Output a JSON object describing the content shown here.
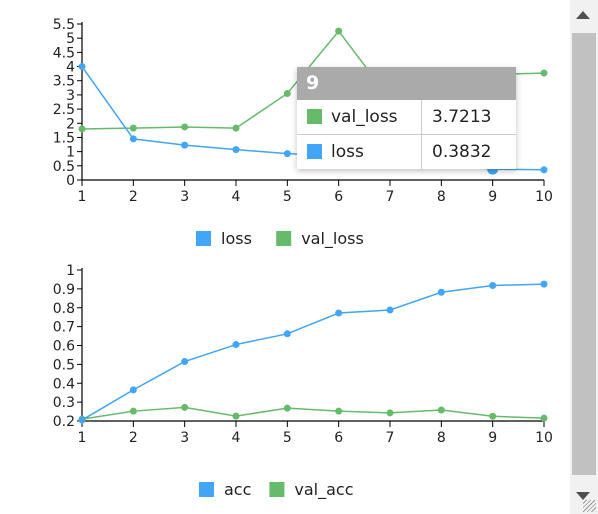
{
  "colors": {
    "blue": "#42a5f5",
    "green": "#66bb6a",
    "tooltip_header": "#aaaaaa"
  },
  "chart_data": [
    {
      "type": "line",
      "x": [
        1,
        2,
        3,
        4,
        5,
        6,
        7,
        8,
        9,
        10
      ],
      "xticks": [
        "1",
        "2",
        "3",
        "4",
        "5",
        "6",
        "7",
        "8",
        "9",
        "10"
      ],
      "ylim": [
        0,
        5.5
      ],
      "yticks": [
        "0",
        "0.5",
        "1",
        "1.5",
        "2",
        "2.5",
        "3",
        "3.5",
        "4",
        "4.5",
        "5",
        "5.5"
      ],
      "series": [
        {
          "name": "loss",
          "color": "#42a5f5",
          "values": [
            4.0,
            1.45,
            1.23,
            1.07,
            0.93,
            0.85,
            0.72,
            0.55,
            0.3832,
            0.36
          ]
        },
        {
          "name": "val_loss",
          "color": "#66bb6a",
          "values": [
            1.8,
            1.83,
            1.87,
            1.83,
            3.05,
            5.25,
            2.85,
            2.8,
            3.7213,
            3.77
          ]
        }
      ],
      "legend_position": "bottom",
      "tooltip": {
        "title": "9",
        "rows": [
          {
            "name": "val_loss",
            "value": "3.7213",
            "color": "#66bb6a"
          },
          {
            "name": "loss",
            "value": "0.3832",
            "color": "#42a5f5"
          }
        ]
      }
    },
    {
      "type": "line",
      "x": [
        1,
        2,
        3,
        4,
        5,
        6,
        7,
        8,
        9,
        10
      ],
      "xticks": [
        "1",
        "2",
        "3",
        "4",
        "5",
        "6",
        "7",
        "8",
        "9",
        "10"
      ],
      "ylim": [
        0.2,
        1.0
      ],
      "yticks": [
        "0.2",
        "0.3",
        "0.4",
        "0.5",
        "0.6",
        "0.7",
        "0.8",
        "0.9",
        "1"
      ],
      "series": [
        {
          "name": "acc",
          "color": "#42a5f5",
          "values": [
            0.205,
            0.365,
            0.515,
            0.605,
            0.662,
            0.772,
            0.788,
            0.882,
            0.918,
            0.925
          ]
        },
        {
          "name": "val_acc",
          "color": "#66bb6a",
          "values": [
            0.21,
            0.252,
            0.272,
            0.226,
            0.268,
            0.252,
            0.243,
            0.258,
            0.225,
            0.215
          ]
        }
      ],
      "legend_position": "bottom"
    }
  ]
}
